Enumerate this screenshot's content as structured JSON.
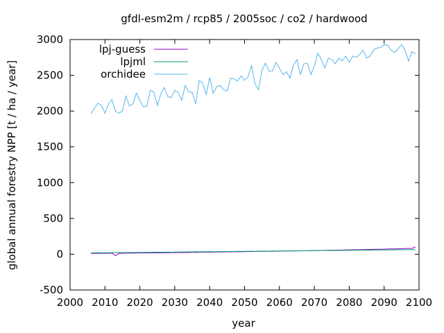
{
  "chart_data": {
    "type": "line",
    "title": "gfdl-esm2m / rcp85 / 2005soc / co2 / hardwood",
    "xlabel": "year",
    "ylabel": "global annual forestry NPP [t / ha / year]",
    "xlim": [
      2000,
      2100
    ],
    "ylim": [
      -500,
      3000
    ],
    "xticks": [
      2000,
      2010,
      2020,
      2030,
      2040,
      2050,
      2060,
      2070,
      2080,
      2090,
      2100
    ],
    "yticks": [
      -500,
      0,
      500,
      1000,
      1500,
      2000,
      2500,
      3000
    ],
    "legend_position": "top-left",
    "grid": false,
    "x": [
      2006,
      2007,
      2008,
      2009,
      2010,
      2011,
      2012,
      2013,
      2014,
      2015,
      2016,
      2017,
      2018,
      2019,
      2020,
      2021,
      2022,
      2023,
      2024,
      2025,
      2026,
      2027,
      2028,
      2029,
      2030,
      2031,
      2032,
      2033,
      2034,
      2035,
      2036,
      2037,
      2038,
      2039,
      2040,
      2041,
      2042,
      2043,
      2044,
      2045,
      2046,
      2047,
      2048,
      2049,
      2050,
      2051,
      2052,
      2053,
      2054,
      2055,
      2056,
      2057,
      2058,
      2059,
      2060,
      2061,
      2062,
      2063,
      2064,
      2065,
      2066,
      2067,
      2068,
      2069,
      2070,
      2071,
      2072,
      2073,
      2074,
      2075,
      2076,
      2077,
      2078,
      2079,
      2080,
      2081,
      2082,
      2083,
      2084,
      2085,
      2086,
      2087,
      2088,
      2089,
      2090,
      2091,
      2092,
      2093,
      2094,
      2095,
      2096,
      2097,
      2098,
      2099
    ],
    "series": [
      {
        "name": "lpj-guess",
        "color": "#9400d3",
        "values": [
          10,
          12,
          13,
          14,
          12,
          14,
          15,
          -20,
          10,
          14,
          15,
          15,
          16,
          16,
          17,
          17,
          18,
          18,
          19,
          19,
          20,
          20,
          21,
          22,
          22,
          23,
          24,
          24,
          25,
          26,
          26,
          27,
          28,
          28,
          29,
          30,
          31,
          31,
          32,
          33,
          33,
          34,
          35,
          35,
          36,
          37,
          37,
          38,
          39,
          39,
          40,
          41,
          41,
          42,
          43,
          44,
          44,
          45,
          46,
          47,
          47,
          48,
          49,
          50,
          51,
          52,
          53,
          54,
          55,
          56,
          57,
          58,
          59,
          60,
          61,
          62,
          63,
          64,
          65,
          66,
          67,
          68,
          69,
          70,
          71,
          73,
          74,
          75,
          76,
          78,
          79,
          80,
          82,
          100
        ]
      },
      {
        "name": "lpjml",
        "color": "#009e73",
        "values": [
          18,
          20,
          22,
          19,
          21,
          20,
          22,
          21,
          23,
          22,
          24,
          23,
          25,
          24,
          26,
          25,
          27,
          26,
          28,
          27,
          29,
          28,
          30,
          29,
          31,
          30,
          32,
          31,
          33,
          32,
          34,
          33,
          35,
          34,
          36,
          35,
          37,
          36,
          38,
          37,
          39,
          38,
          40,
          39,
          41,
          40,
          42,
          41,
          43,
          42,
          44,
          43,
          45,
          44,
          46,
          45,
          47,
          46,
          48,
          47,
          49,
          48,
          50,
          49,
          51,
          50,
          52,
          51,
          53,
          52,
          54,
          53,
          55,
          54,
          56,
          55,
          57,
          56,
          58,
          57,
          59,
          58,
          60,
          59,
          61,
          60,
          62,
          61,
          63,
          62,
          64,
          63,
          65,
          64
        ]
      },
      {
        "name": "orchidee",
        "color": "#56b4e9",
        "values": [
          1960,
          2040,
          2110,
          2080,
          1970,
          2100,
          2160,
          2000,
          1970,
          2000,
          2210,
          2070,
          2100,
          2250,
          2150,
          2060,
          2070,
          2290,
          2270,
          2080,
          2240,
          2330,
          2200,
          2190,
          2290,
          2260,
          2150,
          2360,
          2270,
          2260,
          2100,
          2430,
          2390,
          2230,
          2470,
          2250,
          2340,
          2360,
          2300,
          2280,
          2460,
          2450,
          2420,
          2490,
          2430,
          2480,
          2640,
          2380,
          2300,
          2570,
          2670,
          2560,
          2560,
          2680,
          2600,
          2510,
          2550,
          2460,
          2640,
          2720,
          2510,
          2660,
          2670,
          2510,
          2630,
          2810,
          2720,
          2600,
          2740,
          2720,
          2660,
          2740,
          2700,
          2770,
          2680,
          2770,
          2750,
          2790,
          2850,
          2740,
          2770,
          2860,
          2880,
          2890,
          2930,
          2920,
          2850,
          2820,
          2870,
          2930,
          2850,
          2700,
          2830,
          2800
        ]
      }
    ]
  }
}
